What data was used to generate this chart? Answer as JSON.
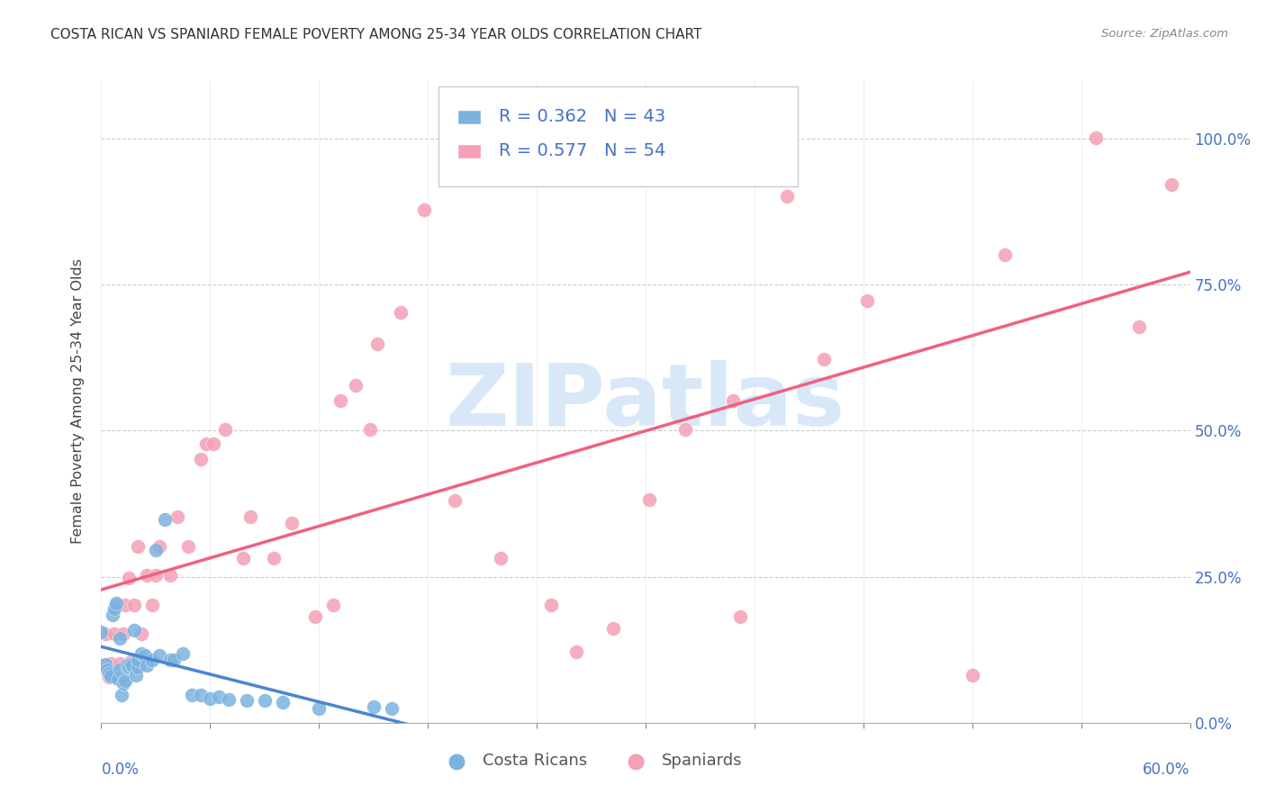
{
  "title": "COSTA RICAN VS SPANIARD FEMALE POVERTY AMONG 25-34 YEAR OLDS CORRELATION CHART",
  "source": "Source: ZipAtlas.com",
  "ylabel": "Female Poverty Among 25-34 Year Olds",
  "ytick_labels": [
    "0.0%",
    "25.0%",
    "50.0%",
    "75.0%",
    "100.0%"
  ],
  "ytick_values": [
    0.0,
    0.25,
    0.5,
    0.75,
    1.0
  ],
  "xlim": [
    0.0,
    0.6
  ],
  "ylim": [
    0.0,
    1.1
  ],
  "blue_color": "#7ab3e0",
  "pink_color": "#f4a0b5",
  "blue_line_color": "#4a86d0",
  "pink_line_color": "#f06080",
  "dashed_line_color": "#a0b8d8",
  "label_color": "#4472c4",
  "grid_color": "#cccccc",
  "watermark_text": "ZIPatlas",
  "watermark_color": "#d8e8f8",
  "legend_r1": "R = 0.362",
  "legend_n1": "N = 43",
  "legend_r2": "R = 0.577",
  "legend_n2": "N = 54",
  "costa_rican_x": [
    0.0,
    0.002,
    0.003,
    0.004,
    0.005,
    0.006,
    0.007,
    0.008,
    0.009,
    0.01,
    0.01,
    0.011,
    0.012,
    0.013,
    0.014,
    0.015,
    0.016,
    0.017,
    0.018,
    0.019,
    0.02,
    0.02,
    0.022,
    0.024,
    0.025,
    0.028,
    0.03,
    0.032,
    0.035,
    0.038,
    0.04,
    0.045,
    0.05,
    0.055,
    0.06,
    0.065,
    0.07,
    0.08,
    0.09,
    0.1,
    0.12,
    0.15,
    0.16
  ],
  "costa_rican_y": [
    0.155,
    0.1,
    0.09,
    0.085,
    0.08,
    0.185,
    0.195,
    0.205,
    0.075,
    0.09,
    0.145,
    0.048,
    0.068,
    0.072,
    0.098,
    0.095,
    0.1,
    0.098,
    0.158,
    0.082,
    0.095,
    0.108,
    0.118,
    0.115,
    0.098,
    0.108,
    0.295,
    0.115,
    0.348,
    0.108,
    0.108,
    0.118,
    0.048,
    0.048,
    0.042,
    0.045,
    0.04,
    0.038,
    0.038,
    0.035,
    0.025,
    0.028,
    0.025
  ],
  "spaniard_x": [
    0.0,
    0.002,
    0.004,
    0.005,
    0.007,
    0.008,
    0.01,
    0.012,
    0.013,
    0.015,
    0.016,
    0.018,
    0.02,
    0.022,
    0.025,
    0.028,
    0.03,
    0.032,
    0.038,
    0.042,
    0.048,
    0.055,
    0.058,
    0.062,
    0.068,
    0.078,
    0.082,
    0.095,
    0.105,
    0.118,
    0.128,
    0.132,
    0.14,
    0.148,
    0.152,
    0.165,
    0.178,
    0.195,
    0.22,
    0.248,
    0.262,
    0.282,
    0.302,
    0.322,
    0.348,
    0.352,
    0.378,
    0.398,
    0.422,
    0.48,
    0.498,
    0.548,
    0.572,
    0.59
  ],
  "spaniard_y": [
    0.098,
    0.152,
    0.078,
    0.102,
    0.152,
    0.202,
    0.102,
    0.152,
    0.202,
    0.248,
    0.105,
    0.202,
    0.302,
    0.152,
    0.252,
    0.202,
    0.252,
    0.302,
    0.252,
    0.352,
    0.302,
    0.452,
    0.478,
    0.478,
    0.502,
    0.282,
    0.352,
    0.282,
    0.342,
    0.182,
    0.202,
    0.552,
    0.578,
    0.502,
    0.648,
    0.702,
    0.878,
    0.38,
    0.282,
    0.202,
    0.122,
    0.162,
    0.382,
    0.502,
    0.552,
    0.182,
    0.902,
    0.622,
    0.722,
    0.082,
    0.802,
    1.002,
    0.678,
    0.922
  ]
}
